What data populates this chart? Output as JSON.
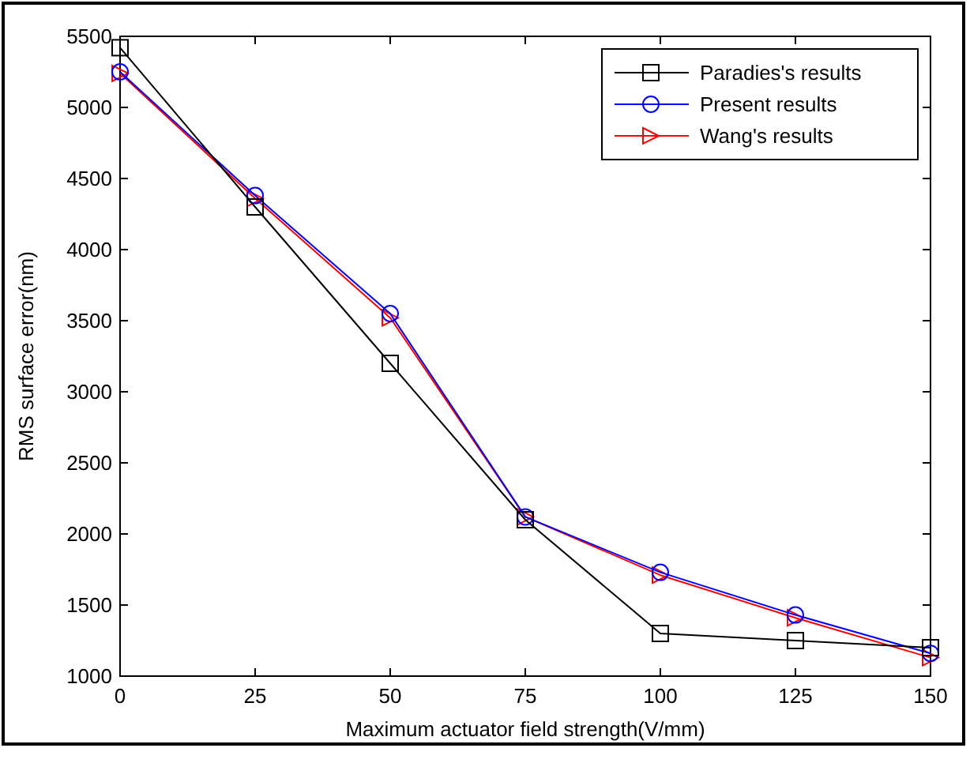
{
  "chart_data": {
    "type": "line",
    "xlabel": "Maximum actuator field strength(V/mm)",
    "ylabel": "RMS surface error(nm)",
    "x": [
      0,
      25,
      50,
      75,
      100,
      125,
      150
    ],
    "series": [
      {
        "name": "Paradies's results",
        "color": "#000000",
        "marker": "square",
        "values": [
          5420,
          4300,
          3200,
          2100,
          1300,
          1250,
          1200
        ]
      },
      {
        "name": "Present results",
        "color": "#0000ff",
        "marker": "circle",
        "values": [
          5250,
          4380,
          3550,
          2120,
          1730,
          1430,
          1160
        ]
      },
      {
        "name": "Wang's results",
        "color": "#ff0000",
        "marker": "triangle",
        "values": [
          5240,
          4360,
          3520,
          2120,
          1710,
          1410,
          1130
        ]
      }
    ],
    "xlim": [
      0,
      150
    ],
    "xticks": [
      0,
      25,
      50,
      75,
      100,
      125,
      150
    ],
    "ylim": [
      1000,
      5500
    ],
    "yticks": [
      1000,
      1500,
      2000,
      2500,
      3000,
      3500,
      4000,
      4500,
      5000,
      5500
    ],
    "grid": false,
    "legend": "top right",
    "line_style": "solid"
  }
}
